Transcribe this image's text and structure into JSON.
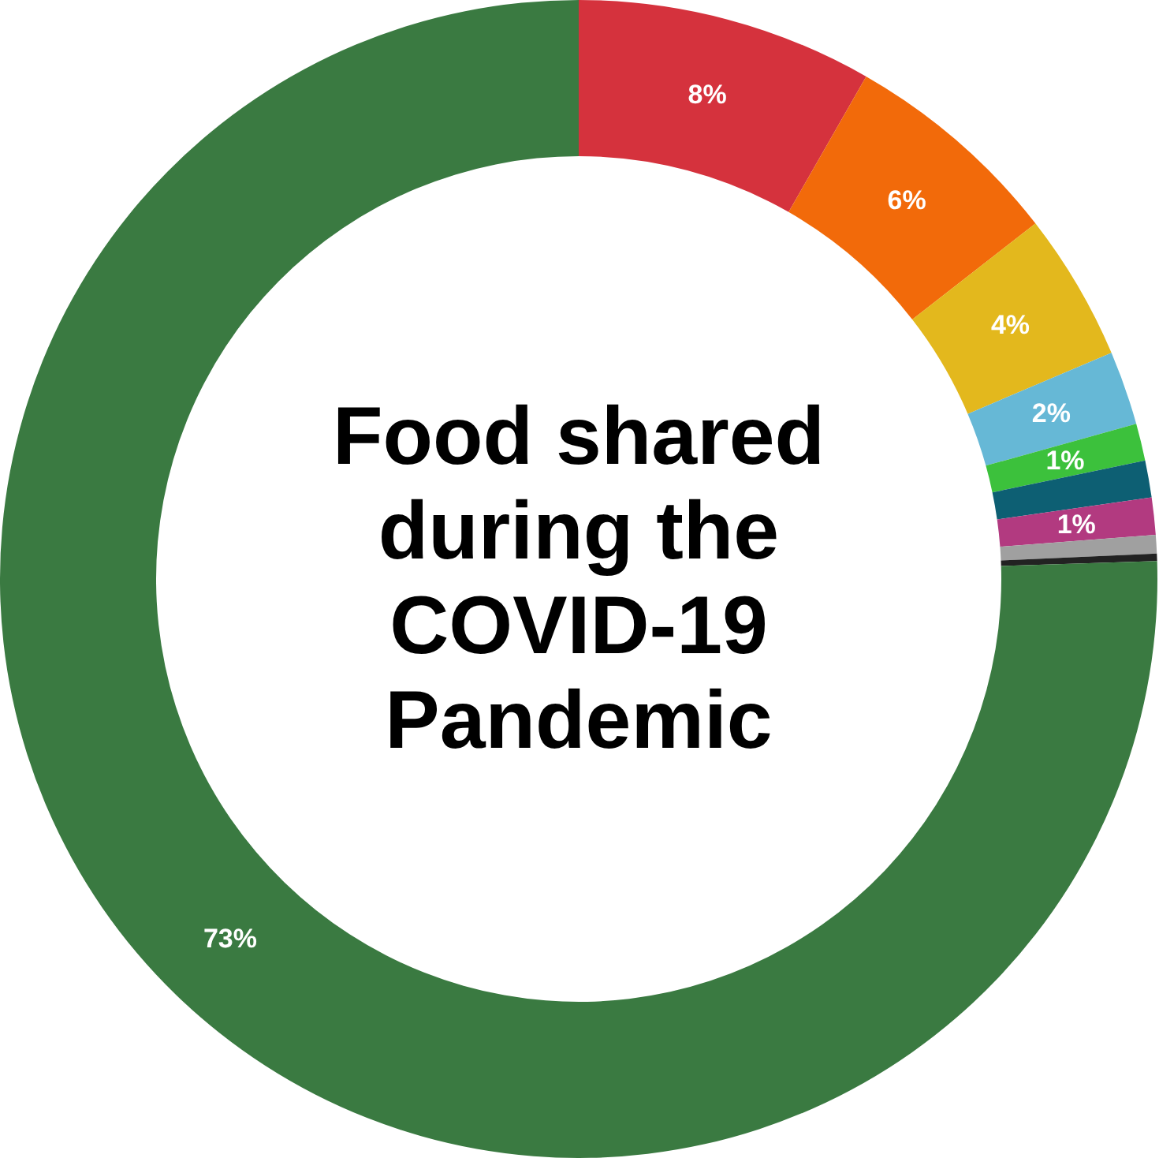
{
  "chart_data": {
    "type": "donut",
    "title": "Food shared during the COVID-19 Pandemic",
    "categories": [
      null,
      null,
      null,
      null,
      null,
      null,
      null,
      null,
      null,
      null
    ],
    "values": [
      8,
      6,
      4,
      2,
      1,
      1,
      1,
      0.5,
      0.2,
      73
    ],
    "value_labels": [
      "8%",
      "6%",
      "4%",
      "2%",
      "1%",
      null,
      "1%",
      null,
      null,
      "73%"
    ],
    "colors": [
      "#d5323d",
      "#f26a0a",
      "#e3b81d",
      "#66b8d6",
      "#3cc13c",
      "#0d5f73",
      "#b23a80",
      "#a0a0a0",
      "#222222",
      "#3a7a41"
    ]
  }
}
